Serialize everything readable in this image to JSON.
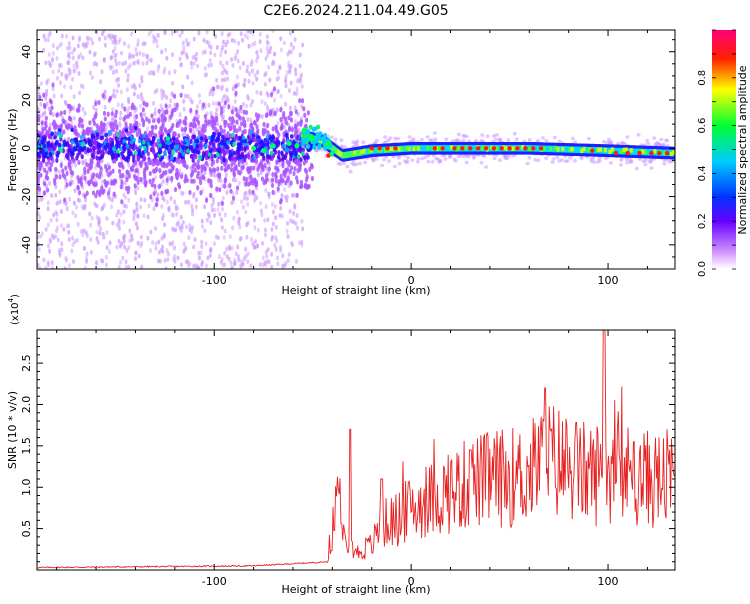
{
  "title": "C2E6.2024.211.04.49.G05",
  "colors": {
    "line": "#e82020",
    "frame": "#000000"
  },
  "chart_data": [
    {
      "type": "heatmap",
      "xlabel": "Height of straight line (km)",
      "ylabel": "Frequency (Hz)",
      "xlim": [
        -190,
        134
      ],
      "ylim": [
        -50,
        49
      ],
      "xticks": [
        -100,
        0,
        100
      ],
      "yticks": [
        -40,
        -20,
        0,
        20,
        40
      ],
      "colorbar": {
        "label": "Normalized spectral amplitude",
        "range": [
          0,
          1
        ],
        "ticks": [
          0.0,
          0.2,
          0.4,
          0.6,
          0.8
        ],
        "tick_labels": [
          "0.0",
          "0.2",
          "0.4",
          "0.6",
          "0.8"
        ],
        "colormap": "hsv-rainbow (white→violet→blue→cyan→green→yellow→red→magenta)"
      },
      "features": {
        "noisy_region_x": [
          -190,
          -55
        ],
        "transition_x": [
          -55,
          -30
        ],
        "stable_line_freq_hz_x": [
          [
            -55,
            5
          ],
          [
            -45,
            3
          ],
          [
            -35,
            -3
          ],
          [
            -20,
            -1
          ],
          [
            0,
            0
          ],
          [
            60,
            0
          ],
          [
            100,
            -1
          ],
          [
            134,
            -2
          ]
        ]
      }
    },
    {
      "type": "line",
      "xlabel": "Height of straight line (km)",
      "ylabel": "SNR (10 * v/v)",
      "y_multiplier": "(x10",
      "y_multiplier_exp": "4",
      "y_multiplier_close": ")",
      "xlim": [
        -190,
        134
      ],
      "ylim": [
        0,
        2.9
      ],
      "xticks": [
        -100,
        0,
        100
      ],
      "yticks": [
        0.5,
        1.0,
        1.5,
        2.0,
        2.5
      ],
      "ytick_labels": [
        "0.5",
        "1.0",
        "1.5",
        "2.0",
        "2.5"
      ],
      "envelope": {
        "x": [
          -190,
          -80,
          -42,
          -40,
          -36,
          -32,
          -28,
          -20,
          -15,
          -8,
          0,
          10,
          20,
          30,
          40,
          50,
          60,
          65,
          70,
          80,
          90,
          100,
          110,
          120,
          134
        ],
        "y": [
          0.03,
          0.05,
          0.1,
          0.55,
          0.9,
          0.4,
          0.2,
          0.3,
          0.55,
          0.6,
          0.75,
          0.85,
          0.95,
          1.05,
          1.1,
          1.12,
          1.15,
          1.3,
          1.35,
          1.25,
          1.15,
          1.2,
          1.15,
          1.1,
          1.1
        ]
      },
      "peaks": [
        {
          "x": -31,
          "y": 1.7
        },
        {
          "x": -15,
          "y": 1.1
        },
        {
          "x": 30,
          "y": 1.45
        },
        {
          "x": 68,
          "y": 2.2
        },
        {
          "x": 98,
          "y": 2.9
        },
        {
          "x": 113,
          "y": 1.55
        }
      ]
    }
  ]
}
